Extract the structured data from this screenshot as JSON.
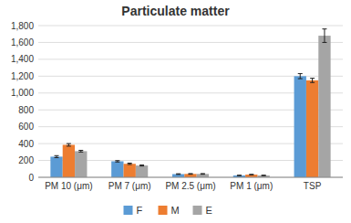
{
  "chart_data": {
    "type": "bar",
    "title": "Particulate matter",
    "categories": [
      "PM 10 (μm)",
      "PM 7 (μm)",
      "PM 2.5 (μm)",
      "PM 1 (μm)",
      "TSP"
    ],
    "series": [
      {
        "name": "F",
        "color": "#5b9bd5",
        "values": [
          245,
          190,
          38,
          22,
          1200
        ],
        "errors": [
          12,
          8,
          4,
          3,
          30
        ]
      },
      {
        "name": "M",
        "color": "#ed7d31",
        "values": [
          385,
          160,
          40,
          32,
          1150
        ],
        "errors": [
          15,
          8,
          4,
          3,
          25
        ]
      },
      {
        "name": "E",
        "color": "#a5a5a5",
        "values": [
          310,
          140,
          40,
          22,
          1680
        ],
        "errors": [
          10,
          6,
          4,
          3,
          80
        ]
      }
    ],
    "ylim": [
      0,
      1800
    ],
    "yticks": [
      0,
      200,
      400,
      600,
      800,
      {
        "value": 1000,
        "label": "1,000"
      },
      {
        "value": 1200,
        "label": "1,200"
      },
      {
        "value": 1400,
        "label": "1,400"
      },
      {
        "value": 1600,
        "label": "1,600"
      },
      {
        "value": 1800,
        "label": "1,800"
      }
    ],
    "grid": true,
    "legend": "bottom",
    "background_color": "#ffffff"
  }
}
